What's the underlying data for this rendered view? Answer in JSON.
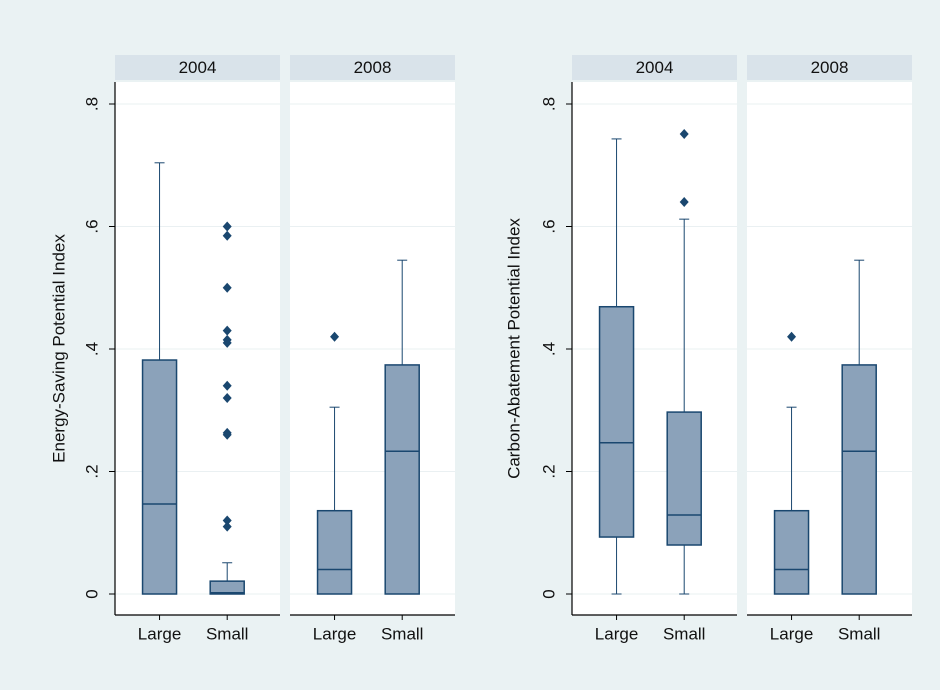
{
  "chart_data": [
    {
      "type": "box",
      "ylabel": "Energy-Saving Potential Index",
      "ylim": [
        0,
        0.8
      ],
      "yticks": [
        0,
        {
          "value": 0.2,
          "label": ".2"
        },
        {
          "value": 0.4,
          "label": ".4"
        },
        {
          "value": 0.6,
          "label": ".6"
        },
        {
          "value": 0.8,
          "label": ".8"
        }
      ],
      "grid": true,
      "color": "#8ba2ba",
      "line_color": "#1a476f",
      "panels": [
        {
          "title": "2004",
          "categories": [
            "Large",
            "Small"
          ],
          "boxes": [
            {
              "min": 0,
              "q1": 0,
              "median": 0.147,
              "q3": 0.382,
              "max": 0.704,
              "outliers": []
            },
            {
              "min": 0,
              "q1": 0,
              "median": 0.002,
              "q3": 0.021,
              "max": 0.051,
              "outliers": [
                0.6,
                0.585,
                0.5,
                0.43,
                0.415,
                0.41,
                0.34,
                0.32,
                0.263,
                0.26,
                0.12,
                0.11
              ]
            }
          ]
        },
        {
          "title": "2008",
          "categories": [
            "Large",
            "Small"
          ],
          "boxes": [
            {
              "min": 0,
              "q1": 0,
              "median": 0.04,
              "q3": 0.136,
              "max": 0.305,
              "outliers": [
                0.42
              ]
            },
            {
              "min": 0,
              "q1": 0,
              "median": 0.233,
              "q3": 0.374,
              "max": 0.545,
              "outliers": []
            }
          ]
        }
      ]
    },
    {
      "type": "box",
      "ylabel": "Carbon-Abatement Potential Index",
      "ylim": [
        0,
        0.8
      ],
      "yticks": [
        0,
        {
          "value": 0.2,
          "label": ".2"
        },
        {
          "value": 0.4,
          "label": ".4"
        },
        {
          "value": 0.6,
          "label": ".6"
        },
        {
          "value": 0.8,
          "label": ".8"
        }
      ],
      "grid": true,
      "color": "#8ba2ba",
      "line_color": "#1a476f",
      "panels": [
        {
          "title": "2004",
          "categories": [
            "Large",
            "Small"
          ],
          "boxes": [
            {
              "min": 0,
              "q1": 0.093,
              "median": 0.247,
              "q3": 0.469,
              "max": 0.743,
              "outliers": []
            },
            {
              "min": 0,
              "q1": 0.08,
              "median": 0.129,
              "q3": 0.297,
              "max": 0.612,
              "outliers": [
                0.751,
                0.64
              ]
            }
          ]
        },
        {
          "title": "2008",
          "categories": [
            "Large",
            "Small"
          ],
          "boxes": [
            {
              "min": 0,
              "q1": 0,
              "median": 0.04,
              "q3": 0.136,
              "max": 0.305,
              "outliers": [
                0.42
              ]
            },
            {
              "min": 0,
              "q1": 0,
              "median": 0.233,
              "q3": 0.374,
              "max": 0.545,
              "outliers": []
            }
          ]
        }
      ]
    }
  ]
}
